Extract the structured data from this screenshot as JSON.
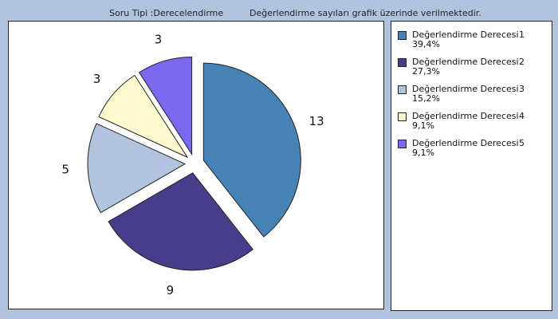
{
  "header": {
    "question_type": "Soru Tipi :Derecelendirme",
    "info": "Değerlendirme sayıları grafik üzerinde verilmektedir."
  },
  "legend": [
    {
      "label": "Değerlendirme Derecesi",
      "num": "1",
      "pct": "39,4%",
      "color": "#4682b4"
    },
    {
      "label": "Değerlendirme Derecesi",
      "num": "2",
      "pct": "27,3%",
      "color": "#483d8b"
    },
    {
      "label": "Değerlendirme Derecesi",
      "num": "3",
      "pct": "15,2%",
      "color": "#b0c4de"
    },
    {
      "label": "Değerlendirme Derecesi",
      "num": "4",
      "pct": "9,1%",
      "color": "#fffacd"
    },
    {
      "label": "Değerlendirme Derecesi",
      "num": "5",
      "pct": "9,1%",
      "color": "#7b68ee"
    }
  ],
  "chart_data": {
    "type": "pie",
    "categories": [
      "Değerlendirme Derecesi 1",
      "Değerlendirme Derecesi 2",
      "Değerlendirme Derecesi 3",
      "Değerlendirme Derecesi 4",
      "Değerlendirme Derecesi 5"
    ],
    "values": [
      13,
      9,
      5,
      3,
      3
    ],
    "percent_labels": [
      "39,4%",
      "27,3%",
      "15,2%",
      "9,1%",
      "9,1%"
    ],
    "colors": [
      "#4682b4",
      "#483d8b",
      "#b0c4de",
      "#fffacd",
      "#7b68ee"
    ],
    "exploded": true,
    "legend_position": "right"
  }
}
